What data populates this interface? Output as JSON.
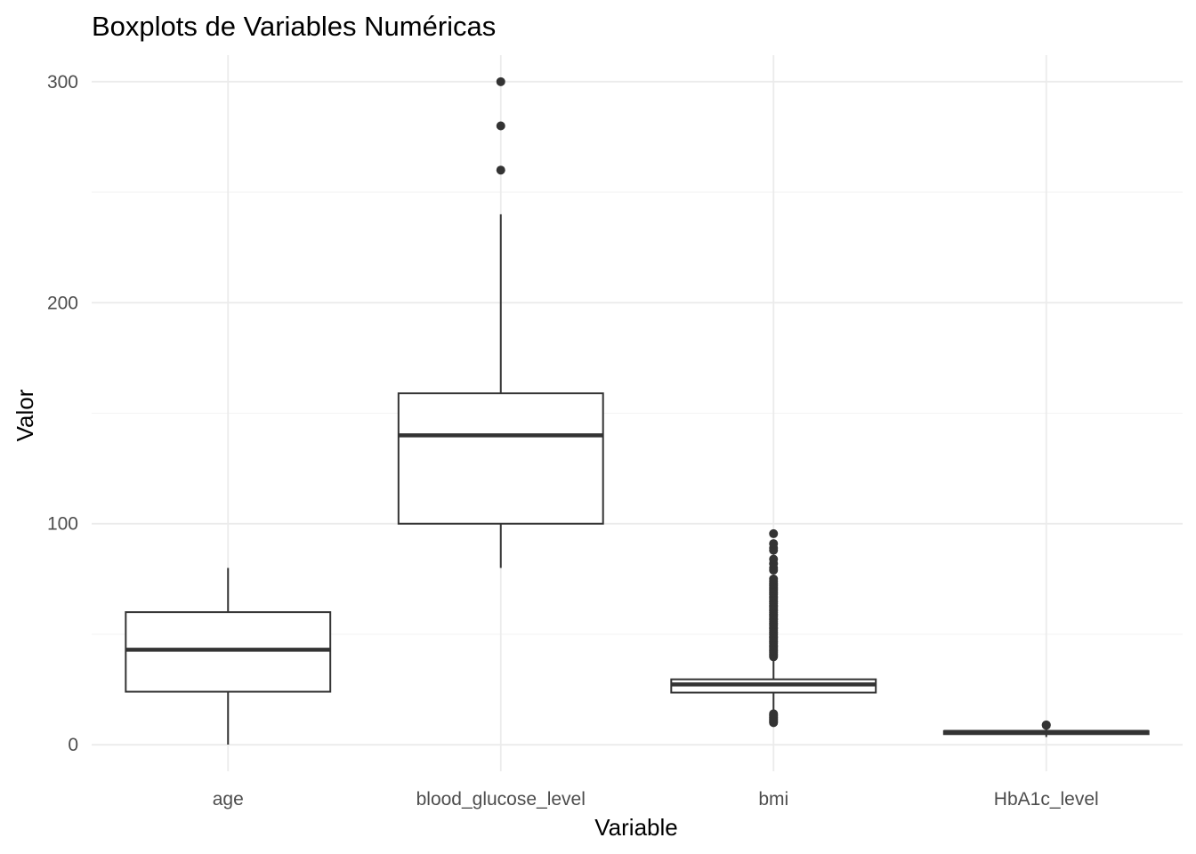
{
  "chart_data": {
    "type": "boxplot",
    "title": "Boxplots de Variables Numéricas",
    "xlabel": "Variable",
    "ylabel": "Valor",
    "ylim": [
      -12,
      312
    ],
    "y_ticks": [
      0,
      100,
      200,
      300
    ],
    "y_minor_ticks": [
      50,
      150,
      250
    ],
    "grid": true,
    "colors": {
      "box_line": "#333333",
      "box_fill": "#ffffff",
      "grid": "#ebebeb",
      "tick_text": "#4d4d4d"
    },
    "categories": [
      "age",
      "blood_glucose_level",
      "bmi",
      "HbA1c_level"
    ],
    "boxes": [
      {
        "category": "age",
        "whisker_low": 0.08,
        "q1": 24,
        "median": 43,
        "q3": 60,
        "whisker_high": 80,
        "outliers": []
      },
      {
        "category": "blood_glucose_level",
        "whisker_low": 80,
        "q1": 100,
        "median": 140,
        "q3": 159,
        "whisker_high": 240,
        "outliers": [
          260,
          280,
          300
        ]
      },
      {
        "category": "bmi",
        "whisker_low": 14,
        "q1": 23.6,
        "median": 27.3,
        "q3": 29.6,
        "whisker_high": 39.4,
        "outliers": [
          10,
          10.5,
          11,
          11.5,
          12,
          12.5,
          13,
          13.5,
          14,
          39.8,
          40.5,
          41,
          41.8,
          42.5,
          43,
          43.8,
          44.5,
          45,
          45.8,
          46.5,
          47,
          47.8,
          48.5,
          49,
          49.8,
          50.5,
          51,
          51.8,
          52.5,
          53,
          53.8,
          54.5,
          55,
          55.8,
          56.5,
          57,
          57.8,
          58.5,
          59,
          59.8,
          60.5,
          61,
          61.8,
          62.5,
          63,
          63.8,
          64.5,
          65,
          65.8,
          66.5,
          67,
          67.8,
          68.5,
          69,
          69.8,
          70.5,
          71,
          71.8,
          72.5,
          73,
          74,
          75,
          79,
          80,
          82,
          84,
          88,
          89,
          91,
          95.5
        ]
      },
      {
        "category": "HbA1c_level",
        "whisker_low": 3.5,
        "q1": 4.8,
        "median": 5.8,
        "q3": 6.2,
        "whisker_high": 8.2,
        "outliers": [
          8.8,
          9
        ]
      }
    ]
  }
}
